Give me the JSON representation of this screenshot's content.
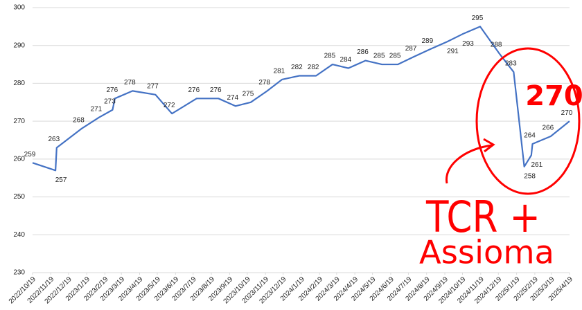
{
  "chart_data": {
    "type": "line",
    "x": [
      "2022/10/19",
      "2022/11/27",
      "2022/11/29",
      "2023/1/10",
      "2023/2/9",
      "2023/3/4",
      "2023/3/8",
      "2023/4/7",
      "2023/5/16",
      "2023/6/13",
      "2023/7/25",
      "2023/8/31",
      "2023/9/29",
      "2023/10/25",
      "2023/11/22",
      "2023/12/17",
      "2024/1/16",
      "2024/2/13",
      "2024/3/12",
      "2024/4/8",
      "2024/5/7",
      "2024/6/4",
      "2024/7/1",
      "2024/7/28",
      "2024/8/25",
      "2024/9/23",
      "2024/10/19",
      "2024/11/18",
      "2024/12/20",
      "2025/1/14",
      "2025/2/1",
      "2025/2/13",
      "2025/2/15",
      "2025/3/18",
      "2025/4/19"
    ],
    "series": [
      {
        "color": "#4472c4",
        "values": [
          259,
          257,
          263,
          268,
          271,
          273,
          276,
          278,
          277,
          272,
          276,
          276,
          274,
          275,
          278,
          281,
          282,
          282,
          285,
          284,
          286,
          285,
          285,
          287,
          289,
          291,
          293,
          295,
          288,
          283,
          258,
          261,
          264,
          266,
          270
        ]
      }
    ],
    "xlim": [
      "2022/10/19",
      "2025/4/19"
    ],
    "xticks": [
      "2022/10/19",
      "2022/11/19",
      "2022/12/19",
      "2023/1/19",
      "2023/2/19",
      "2023/3/19",
      "2023/4/19",
      "2023/5/19",
      "2023/6/19",
      "2023/7/19",
      "2023/8/19",
      "2023/9/19",
      "2023/10/19",
      "2023/11/19",
      "2023/12/19",
      "2024/1/19",
      "2024/2/19",
      "2024/3/19",
      "2024/4/19",
      "2024/5/19",
      "2024/6/19",
      "2024/7/19",
      "2024/8/19",
      "2024/9/19",
      "2024/10/19",
      "2024/11/19",
      "2024/12/19",
      "2025/1/19",
      "2025/2/19",
      "2025/3/19",
      "2025/4/19"
    ],
    "ylim": [
      230,
      300
    ],
    "yticks": [
      230,
      240,
      250,
      260,
      270,
      280,
      290,
      300
    ],
    "grid": true,
    "annotations": [
      {
        "text": "270",
        "color": "#ff0000"
      },
      {
        "text": "TCR +",
        "color": "#ff0000"
      },
      {
        "text": "Assioma",
        "color": "#ff0000"
      }
    ]
  }
}
